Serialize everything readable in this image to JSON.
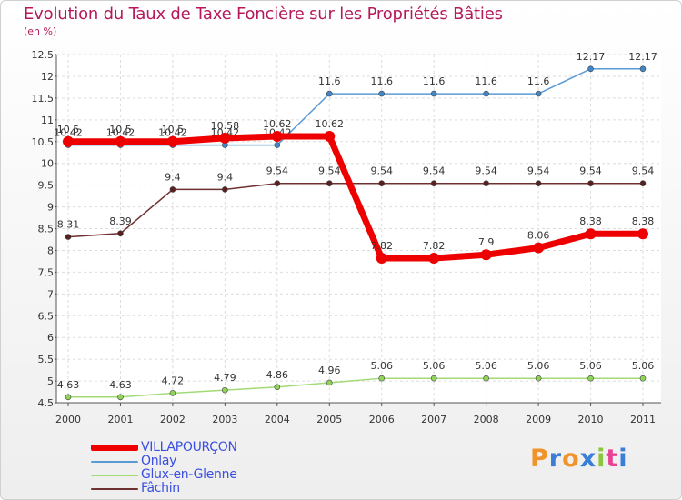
{
  "chart_data": {
    "type": "line",
    "title": "Evolution du Taux de Taxe Foncière sur les Propriétés Bâties",
    "subtitle": "(en %)",
    "x": [
      "2000",
      "2001",
      "2002",
      "2003",
      "2004",
      "2005",
      "2006",
      "2007",
      "2008",
      "2009",
      "2010",
      "2011"
    ],
    "ylim": [
      4.5,
      12.5
    ],
    "yticks": [
      4.5,
      5,
      5.5,
      6,
      6.5,
      7,
      7.5,
      8,
      8.5,
      9,
      9.5,
      10,
      10.5,
      11,
      11.5,
      12,
      12.5
    ],
    "ytick_labels": [
      "4.5",
      "5",
      "5.5",
      "6",
      "6.5",
      "7",
      "7.5",
      "8",
      "8.5",
      "9",
      "9.5",
      "10",
      "10.5",
      "11",
      "11.5",
      "12",
      "12.5"
    ],
    "series": [
      {
        "name": "Onlay",
        "color": "#5b9bd5",
        "point_color": "#3f87c8",
        "values": [
          10.42,
          10.42,
          10.42,
          10.42,
          10.42,
          11.6,
          11.6,
          11.6,
          11.6,
          11.6,
          12.17,
          12.17
        ],
        "labels": [
          "10.42",
          "10.42",
          "10.42",
          "10.42",
          "10.42",
          "11.6",
          "11.6",
          "11.6",
          "11.6",
          "11.6",
          "12.17",
          "12.17"
        ]
      },
      {
        "name": "Glux-en-Glenne",
        "color": "#a2db76",
        "point_color": "#8fd35a",
        "values": [
          4.63,
          4.63,
          4.72,
          4.79,
          4.86,
          4.96,
          5.06,
          5.06,
          5.06,
          5.06,
          5.06,
          5.06
        ],
        "labels": [
          "4.63",
          "4.63",
          "4.72",
          "4.79",
          "4.86",
          "4.96",
          "5.06",
          "5.06",
          "5.06",
          "5.06",
          "5.06",
          "5.06"
        ]
      },
      {
        "name": "Fâchin",
        "color": "#6e3030",
        "point_color": "#5a1f1f",
        "values": [
          8.31,
          8.39,
          9.4,
          9.4,
          9.54,
          9.54,
          9.54,
          9.54,
          9.54,
          9.54,
          9.54,
          9.54
        ],
        "labels": [
          "8.31",
          "8.39",
          "9.4",
          "9.4",
          "9.54",
          "9.54",
          "9.54",
          "9.54",
          "9.54",
          "9.54",
          "9.54",
          "9.54"
        ]
      },
      {
        "name": "VILLAPOURÇON",
        "color": "#ee0000",
        "point_color": "#ee0000",
        "values": [
          10.5,
          10.5,
          10.5,
          10.58,
          10.62,
          10.62,
          7.82,
          7.82,
          7.9,
          8.06,
          8.38,
          8.38
        ],
        "labels": [
          "10.5",
          "10.5",
          "10.5",
          "10.58",
          "10.62",
          "10.62",
          "7.82",
          "7.82",
          "7.9",
          "8.06",
          "8.38",
          "8.38"
        ]
      }
    ],
    "legend": [
      {
        "name": "VILLAPOURÇON",
        "color": "#ee0000"
      },
      {
        "name": "Onlay",
        "color": "#5b9bd5"
      },
      {
        "name": "Glux-en-Glenne",
        "color": "#a2db76"
      },
      {
        "name": "Fâchin",
        "color": "#6e3030"
      }
    ],
    "legend_position": "bottom-left",
    "grid": true
  },
  "branding": {
    "logo_letters": [
      "P",
      "r",
      "o",
      "x",
      "i",
      "t",
      "i"
    ],
    "logo_colors": [
      "#f0932b",
      "#3a7fd5",
      "#f0932b",
      "#3a7fd5",
      "#8cc63f",
      "#e84393",
      "#3a7fd5"
    ]
  }
}
